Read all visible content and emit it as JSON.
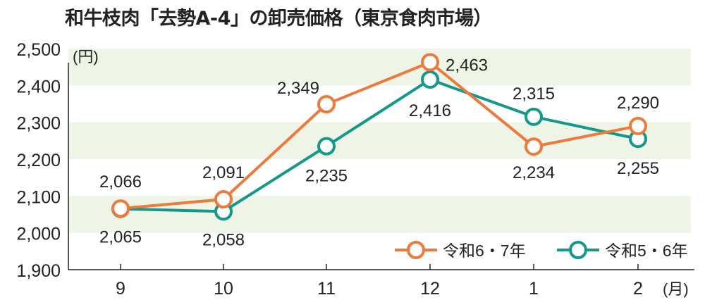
{
  "chart_data": {
    "type": "line",
    "title": "和牛枝肉「去勢A-4」の卸売価格（東京食肉市場）",
    "ylabel": "(円)",
    "xlabel": "(月)",
    "categories": [
      "9",
      "10",
      "11",
      "12",
      "1",
      "2"
    ],
    "ylim": [
      1900,
      2500
    ],
    "yticks": [
      1900,
      2000,
      2100,
      2200,
      2300,
      2400,
      2500
    ],
    "ytick_labels": [
      "1,900",
      "2,000",
      "2,100",
      "2,200",
      "2,300",
      "2,400",
      "2,500"
    ],
    "grid": "alternating horizontal bands",
    "legend_position": "bottom-right",
    "series": [
      {
        "name": "令和6・7年",
        "color": "#ec7a3c",
        "values": [
          2066,
          2091,
          2349,
          2463,
          2234,
          2290
        ],
        "labels": [
          "2,066",
          "2,091",
          "2,349",
          "2,463",
          "2,234",
          "2,290"
        ]
      },
      {
        "name": "令和5・6年",
        "color": "#14988a",
        "values": [
          2065,
          2058,
          2235,
          2416,
          2315,
          2255
        ],
        "labels": [
          "2,065",
          "2,058",
          "2,235",
          "2,416",
          "2,315",
          "2,255"
        ]
      }
    ]
  },
  "band_color": "#eef5e6"
}
